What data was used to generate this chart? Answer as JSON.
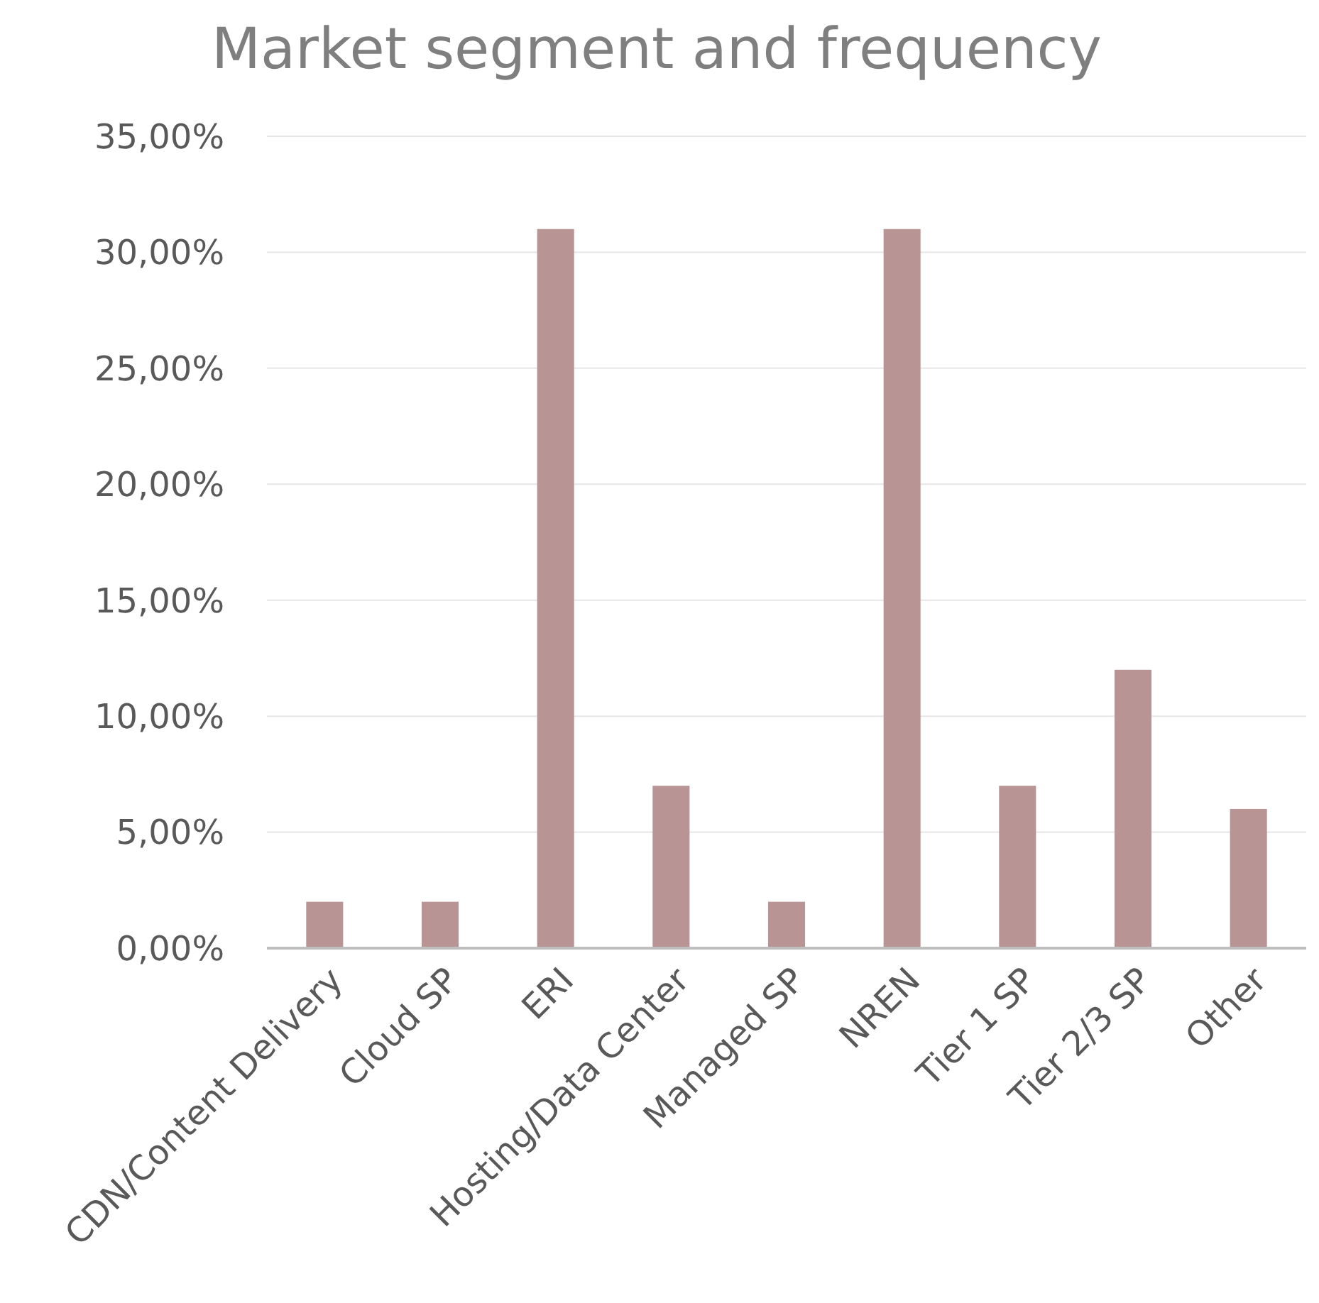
{
  "chart_data": {
    "type": "bar",
    "title": "Market segment and frequency",
    "categories": [
      "CDN/Content Delivery",
      "Cloud SP",
      "ERI",
      "Hosting/Data Center",
      "Managed SP",
      "NREN",
      "Tier 1 SP",
      "Tier 2/3 SP",
      "Other"
    ],
    "values": [
      2,
      2,
      31,
      7,
      2,
      31,
      7,
      12,
      6
    ],
    "color": "#b89594",
    "ylim": [
      0,
      35
    ],
    "yticks": [
      {
        "value": 0,
        "label": "0,00%"
      },
      {
        "value": 5,
        "label": "5,00%"
      },
      {
        "value": 10,
        "label": "10,00%"
      },
      {
        "value": 15,
        "label": "15,00%"
      },
      {
        "value": 20,
        "label": "20,00%"
      },
      {
        "value": 25,
        "label": "25,00%"
      },
      {
        "value": 30,
        "label": "30,00%"
      },
      {
        "value": 35,
        "label": "35,00%"
      }
    ],
    "grid": true
  }
}
